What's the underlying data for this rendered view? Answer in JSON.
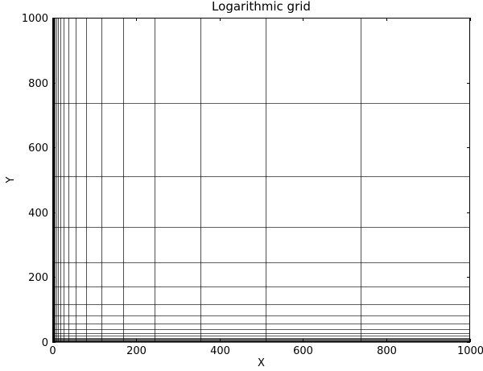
{
  "chart_data": {
    "type": "line",
    "title": "Logarithmic grid",
    "xlabel": "X",
    "ylabel": "Y",
    "xlim": [
      0,
      1000
    ],
    "ylim": [
      0,
      1000
    ],
    "x_ticks": [
      0,
      200,
      400,
      600,
      800,
      1000
    ],
    "y_ticks": [
      0,
      200,
      400,
      600,
      800,
      1000
    ],
    "x_tick_labels": [
      "0",
      "200",
      "400",
      "600",
      "800",
      "1000"
    ],
    "y_tick_labels": [
      "0",
      "200",
      "400",
      "600",
      "800",
      "1000"
    ],
    "grid": true,
    "grid_spacing": "logarithmic",
    "grid_lines": [
      1,
      1.44,
      2.08,
      3,
      4.33,
      6.25,
      9.02,
      13.03,
      18.8,
      27.14,
      39.17,
      56.54,
      81.61,
      117.79,
      170.01,
      245.4,
      354.21,
      511.27,
      737.97
    ],
    "grid_color": "#000000",
    "background_color": "#ffffff"
  }
}
